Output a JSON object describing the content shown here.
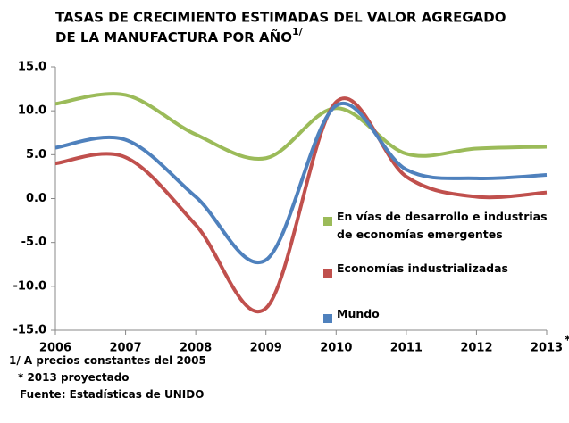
{
  "chart_data": {
    "type": "line",
    "title": [
      "TASAS DE CRECIMIENTO ESTIMADAS DEL VALOR AGREGADO",
      "DE LA MANUFACTURA POR AÑO"
    ],
    "title_superscript": "1/",
    "x": [
      2006,
      2007,
      2008,
      2009,
      2010,
      2011,
      2012,
      2013
    ],
    "xlim": [
      2006,
      2013
    ],
    "xticks": [
      2006,
      2007,
      2008,
      2009,
      2010,
      2011,
      2012,
      2013
    ],
    "x_last_superscript": "*",
    "ylim": [
      -15,
      15
    ],
    "yticks": [
      {
        "value": 15,
        "label": "15.0"
      },
      {
        "value": 10,
        "label": "10.0"
      },
      {
        "value": 5,
        "label": "5.0"
      },
      {
        "value": 0,
        "label": "0.0"
      },
      {
        "value": -5,
        "label": "-5.0"
      },
      {
        "value": -10,
        "label": "-10.0"
      },
      {
        "value": -15,
        "label": "-15.0"
      }
    ],
    "grid": false,
    "smooth": true,
    "series": [
      {
        "name": "En vías de desarrollo e industrias de economías  emergentes",
        "color": "#9bbb59",
        "values": [
          10.8,
          11.8,
          7.3,
          4.6,
          10.3,
          5.1,
          5.7,
          5.9
        ]
      },
      {
        "name": "Economías industrializadas",
        "color": "#c0504d",
        "values": [
          4.0,
          4.7,
          -3.0,
          -12.5,
          11.0,
          2.5,
          0.2,
          0.7
        ]
      },
      {
        "name": "Mundo",
        "color": "#4f81bd",
        "values": [
          5.8,
          6.7,
          0.2,
          -7.0,
          10.6,
          3.3,
          2.3,
          2.7
        ]
      }
    ],
    "notes": [
      "1/  A precios constantes del 2005",
      "*  2013 proyectado",
      "Fuente: Estadísticas de UNIDO"
    ]
  }
}
